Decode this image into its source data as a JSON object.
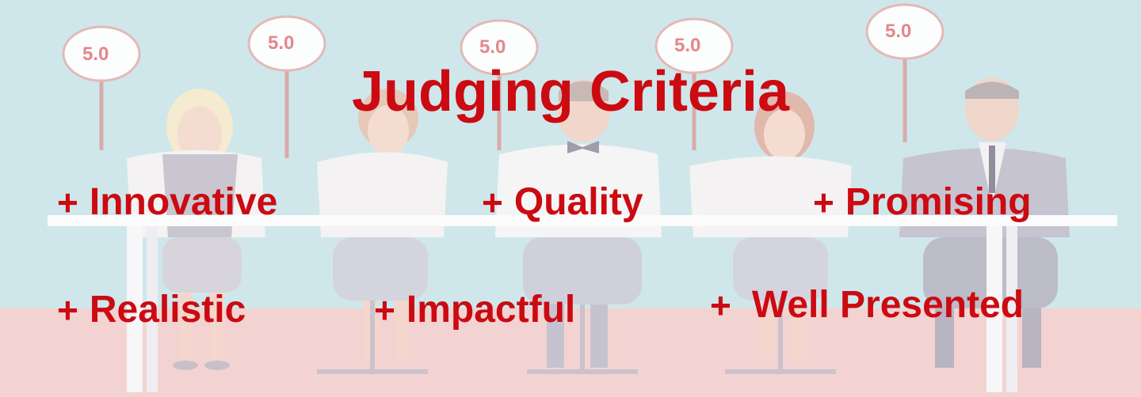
{
  "title": "Judging Criteria",
  "judges": [
    {
      "score": "5.0"
    },
    {
      "score": "5.0"
    },
    {
      "score": "5.0"
    },
    {
      "score": "5.0"
    },
    {
      "score": "5.0"
    }
  ],
  "bullet_symbol": "+",
  "criteria": [
    {
      "label": "Innovative"
    },
    {
      "label": "Quality"
    },
    {
      "label": "Promising"
    },
    {
      "label": "Realistic"
    },
    {
      "label": "Impactful"
    },
    {
      "label": "Well Presented"
    }
  ],
  "colors": {
    "text_accent": "#cc0a12",
    "wall": "#cfe7ea",
    "floor": "#f3d2d0",
    "sign_text": "#e6868a"
  }
}
